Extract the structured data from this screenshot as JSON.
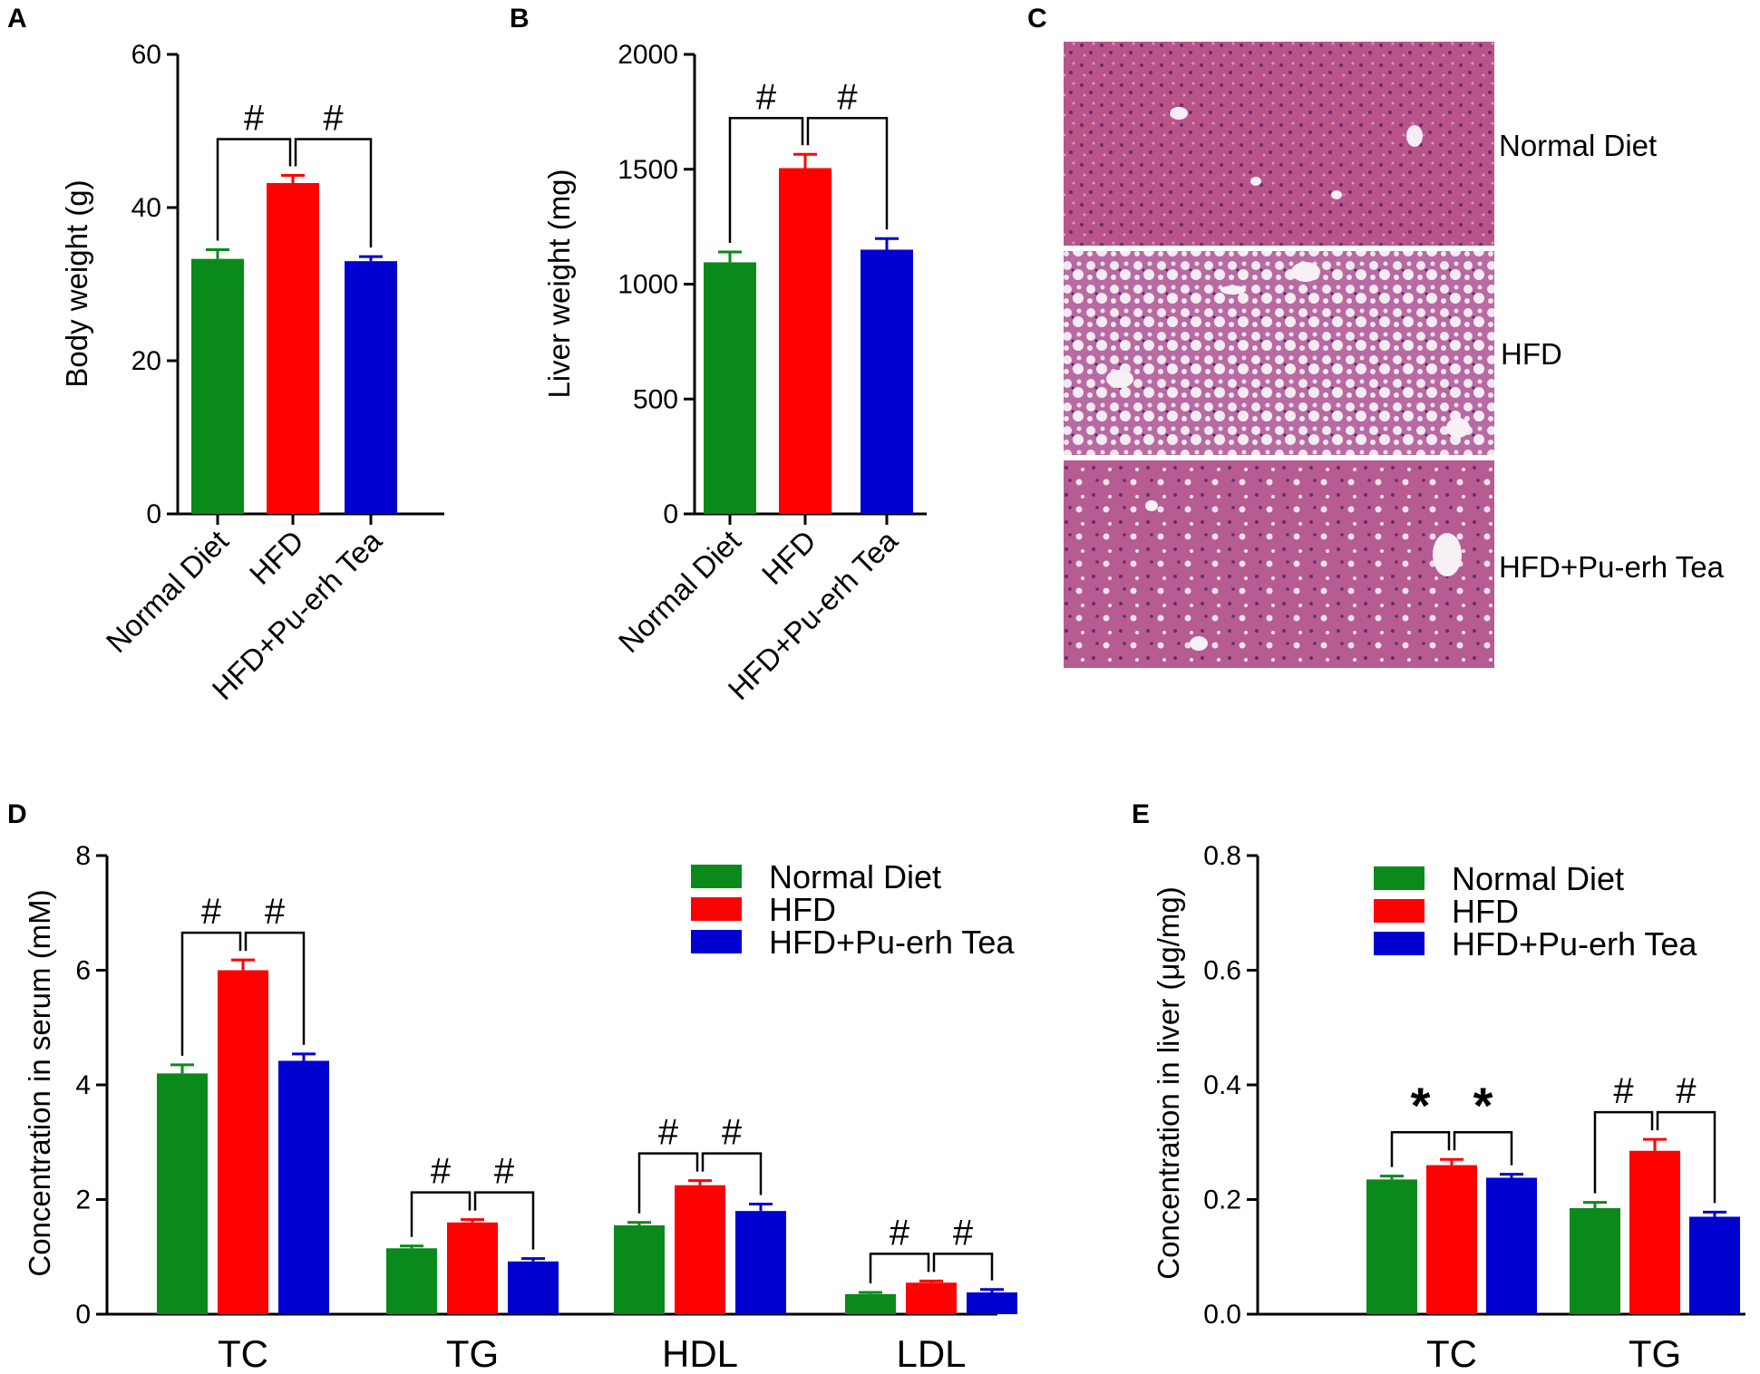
{
  "colors": {
    "Normal Diet": "#0a8a1a",
    "HFD": "#ff0000",
    "HFD+Pu-erh Tea": "#0000d0"
  },
  "panels": {
    "A": {
      "letter": "A"
    },
    "B": {
      "letter": "B"
    },
    "C": {
      "letter": "C",
      "labels": [
        "Normal Diet",
        "HFD",
        "HFD+Pu-erh Tea"
      ]
    },
    "D": {
      "letter": "D"
    },
    "E": {
      "letter": "E"
    }
  },
  "chart_data": [
    {
      "id": "A",
      "type": "bar",
      "title": "",
      "ylabel": "Body weight (g)",
      "xlabel": "",
      "ylim": [
        0,
        60
      ],
      "yticks": [
        "0",
        "20",
        "40",
        "60"
      ],
      "yticks_values": [
        0,
        20,
        40,
        60
      ],
      "categories": [
        "Normal Diet",
        "HFD",
        "HFD+Pu-erh Tea"
      ],
      "values": [
        33.3,
        43.2,
        33.0
      ],
      "errors": [
        1.2,
        1.0,
        0.6
      ],
      "significance": [
        {
          "from": 0,
          "to": 1,
          "mark": "#"
        },
        {
          "from": 1,
          "to": 2,
          "mark": "#"
        }
      ]
    },
    {
      "id": "B",
      "type": "bar",
      "title": "",
      "ylabel": "Liver weight (mg)",
      "xlabel": "",
      "ylim": [
        0,
        2000
      ],
      "yticks": [
        "0",
        "500",
        "1000",
        "1500",
        "2000"
      ],
      "yticks_values": [
        0,
        500,
        1000,
        1500,
        2000
      ],
      "categories": [
        "Normal Diet",
        "HFD",
        "HFD+Pu-erh Tea"
      ],
      "values": [
        1095,
        1505,
        1150
      ],
      "errors": [
        45,
        60,
        48
      ],
      "significance": [
        {
          "from": 0,
          "to": 1,
          "mark": "#"
        },
        {
          "from": 1,
          "to": 2,
          "mark": "#"
        }
      ]
    },
    {
      "id": "D",
      "type": "bar",
      "title": "",
      "ylabel": "Concentration in serum (mM)",
      "xlabel": "",
      "ylim": [
        0,
        8
      ],
      "yticks": [
        "0",
        "2",
        "4",
        "6",
        "8"
      ],
      "yticks_values": [
        0,
        2,
        4,
        6,
        8
      ],
      "categories": [
        "TC",
        "TG",
        "HDL",
        "LDL"
      ],
      "legend": "top-right",
      "series": [
        {
          "name": "Normal Diet",
          "values": [
            4.2,
            1.15,
            1.55,
            0.35
          ],
          "errors": [
            0.15,
            0.04,
            0.05,
            0.03
          ]
        },
        {
          "name": "HFD",
          "values": [
            6.0,
            1.6,
            2.25,
            0.55
          ],
          "errors": [
            0.18,
            0.05,
            0.08,
            0.03
          ]
        },
        {
          "name": "HFD+Pu-erh Tea",
          "values": [
            4.42,
            0.92,
            1.8,
            0.38
          ],
          "errors": [
            0.12,
            0.05,
            0.12,
            0.05
          ]
        }
      ],
      "significance": [
        {
          "group": 0,
          "from": 0,
          "to": 1,
          "mark": "#"
        },
        {
          "group": 0,
          "from": 1,
          "to": 2,
          "mark": "#"
        },
        {
          "group": 1,
          "from": 0,
          "to": 1,
          "mark": "#"
        },
        {
          "group": 1,
          "from": 1,
          "to": 2,
          "mark": "#"
        },
        {
          "group": 2,
          "from": 0,
          "to": 1,
          "mark": "#"
        },
        {
          "group": 2,
          "from": 1,
          "to": 2,
          "mark": "#"
        },
        {
          "group": 3,
          "from": 0,
          "to": 1,
          "mark": "#"
        },
        {
          "group": 3,
          "from": 1,
          "to": 2,
          "mark": "#"
        }
      ]
    },
    {
      "id": "E",
      "type": "bar",
      "title": "",
      "ylabel": "Concentration in liver (μg/mg)",
      "xlabel": "",
      "ylim": [
        0,
        0.8
      ],
      "yticks": [
        "0.0",
        "0.2",
        "0.4",
        "0.6",
        "0.8"
      ],
      "yticks_values": [
        0,
        0.2,
        0.4,
        0.6,
        0.8
      ],
      "categories": [
        "TC",
        "TG"
      ],
      "legend": "top-right",
      "series": [
        {
          "name": "Normal Diet",
          "values": [
            0.235,
            0.185
          ],
          "errors": [
            0.006,
            0.01
          ]
        },
        {
          "name": "HFD",
          "values": [
            0.26,
            0.285
          ],
          "errors": [
            0.01,
            0.02
          ]
        },
        {
          "name": "HFD+Pu-erh Tea",
          "values": [
            0.238,
            0.17
          ],
          "errors": [
            0.006,
            0.008
          ]
        }
      ],
      "significance": [
        {
          "group": 0,
          "from": 0,
          "to": 1,
          "mark": "*"
        },
        {
          "group": 0,
          "from": 1,
          "to": 2,
          "mark": "*"
        },
        {
          "group": 1,
          "from": 0,
          "to": 1,
          "mark": "#"
        },
        {
          "group": 1,
          "from": 1,
          "to": 2,
          "mark": "#"
        }
      ]
    }
  ]
}
